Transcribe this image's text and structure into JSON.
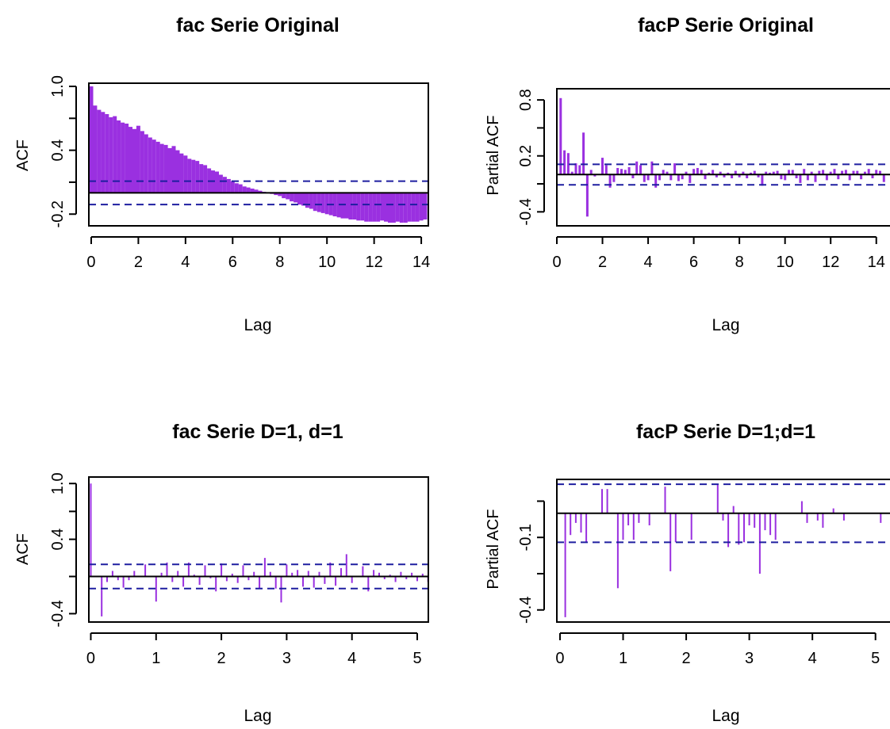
{
  "colors": {
    "bars": "#9a30e0",
    "ci_line": "#1e1ea0",
    "axis": "#000000",
    "background": "#ffffff"
  },
  "chart_data": [
    {
      "id": "p1",
      "type": "bar",
      "subtype": "acf",
      "title": "fac Serie Original",
      "xlabel": "Lag",
      "ylabel": "ACF",
      "xlim": [
        -0.1,
        14.3
      ],
      "ylim": [
        -0.31,
        1.03
      ],
      "xticks": [
        0,
        2,
        4,
        6,
        8,
        10,
        12,
        14
      ],
      "xtick_labels": [
        "0",
        "2",
        "4",
        "6",
        "8",
        "10",
        "12",
        "14"
      ],
      "yticks": [
        -0.2,
        0.4,
        1.0
      ],
      "ytick_labels": [
        "-0.2",
        "0.4",
        "1.0"
      ],
      "yticks_minor": [
        0.1,
        0.7
      ],
      "ci": 0.11,
      "lag_start": 0,
      "lag_step": 0.16667,
      "values": [
        1.0,
        0.82,
        0.78,
        0.76,
        0.74,
        0.71,
        0.72,
        0.68,
        0.66,
        0.65,
        0.62,
        0.6,
        0.63,
        0.58,
        0.55,
        0.52,
        0.5,
        0.48,
        0.46,
        0.45,
        0.42,
        0.44,
        0.4,
        0.37,
        0.35,
        0.32,
        0.31,
        0.3,
        0.27,
        0.26,
        0.23,
        0.21,
        0.2,
        0.17,
        0.15,
        0.13,
        0.11,
        0.09,
        0.08,
        0.06,
        0.05,
        0.04,
        0.03,
        0.02,
        0.01,
        0.0,
        -0.01,
        -0.02,
        -0.03,
        -0.05,
        -0.06,
        -0.08,
        -0.09,
        -0.11,
        -0.12,
        -0.14,
        -0.15,
        -0.17,
        -0.18,
        -0.19,
        -0.2,
        -0.21,
        -0.22,
        -0.23,
        -0.24,
        -0.24,
        -0.25,
        -0.25,
        -0.26,
        -0.26,
        -0.27,
        -0.27,
        -0.27,
        -0.27,
        -0.26,
        -0.27,
        -0.28,
        -0.28,
        -0.27,
        -0.28,
        -0.28,
        -0.27,
        -0.27,
        -0.27,
        -0.26,
        -0.25
      ]
    },
    {
      "id": "p2",
      "type": "bar",
      "subtype": "pacf",
      "title": "facP Serie Original",
      "xlabel": "Lag",
      "ylabel": "Partial ACF",
      "xlim": [
        0.0,
        14.6
      ],
      "ylim": [
        -0.55,
        0.92
      ],
      "xticks": [
        0,
        2,
        4,
        6,
        8,
        10,
        12,
        14
      ],
      "xtick_labels": [
        "0",
        "2",
        "4",
        "6",
        "8",
        "10",
        "12",
        "14"
      ],
      "yticks": [
        -0.4,
        0.2,
        0.8
      ],
      "ytick_labels": [
        "-0.4",
        "0.2",
        "0.8"
      ],
      "yticks_minor": [
        -0.1,
        0.5
      ],
      "ci": 0.11,
      "lag_start": 0.16667,
      "lag_step": 0.16667,
      "values": [
        0.82,
        0.26,
        0.23,
        0.03,
        0.12,
        0.1,
        0.45,
        -0.45,
        0.05,
        -0.02,
        0.0,
        0.18,
        0.1,
        -0.14,
        -0.08,
        0.07,
        0.06,
        0.05,
        0.08,
        -0.04,
        0.14,
        0.1,
        -0.08,
        -0.06,
        0.14,
        -0.14,
        -0.06,
        0.05,
        0.03,
        -0.06,
        0.12,
        -0.07,
        -0.05,
        0.03,
        -0.09,
        0.06,
        0.07,
        0.05,
        -0.05,
        0.02,
        0.05,
        -0.03,
        0.03,
        -0.03,
        0.02,
        -0.04,
        0.04,
        -0.03,
        0.03,
        -0.04,
        0.02,
        0.04,
        -0.03,
        -0.12,
        0.03,
        0.02,
        0.03,
        0.04,
        -0.05,
        -0.06,
        0.05,
        0.05,
        -0.04,
        -0.09,
        0.06,
        -0.06,
        0.03,
        -0.08,
        0.04,
        0.05,
        -0.06,
        0.03,
        0.06,
        -0.05,
        0.04,
        0.05,
        -0.06,
        0.04,
        0.04,
        -0.05,
        0.03,
        0.06,
        -0.04,
        0.05,
        0.04,
        -0.08
      ]
    },
    {
      "id": "p3",
      "type": "bar",
      "subtype": "acf",
      "title": "fac Serie D=1, d=1",
      "xlabel": "Lag",
      "ylabel": "ACF",
      "xlim": [
        -0.03,
        5.17
      ],
      "ylim": [
        -0.49,
        1.07
      ],
      "xticks": [
        0,
        1,
        2,
        3,
        4,
        5
      ],
      "xtick_labels": [
        "0",
        "1",
        "2",
        "3",
        "4",
        "5"
      ],
      "yticks": [
        -0.4,
        0.4,
        1.0
      ],
      "ytick_labels": [
        "-0.4",
        "0.4",
        "1.0"
      ],
      "yticks_minor": [
        0.0,
        0.7
      ],
      "ci": 0.13,
      "lag_start": 0,
      "lag_step": 0.08333,
      "values": [
        1.0,
        0.0,
        -0.43,
        -0.06,
        0.06,
        -0.04,
        -0.12,
        -0.04,
        0.06,
        0.0,
        0.13,
        0.0,
        -0.27,
        0.04,
        0.15,
        -0.06,
        0.06,
        -0.11,
        0.15,
        0.02,
        -0.09,
        0.12,
        -0.02,
        -0.16,
        0.14,
        -0.05,
        0.03,
        -0.07,
        0.12,
        -0.04,
        0.05,
        -0.13,
        0.2,
        0.05,
        -0.13,
        -0.28,
        0.13,
        0.04,
        0.07,
        -0.11,
        0.06,
        -0.12,
        0.05,
        -0.08,
        0.15,
        -0.1,
        0.09,
        0.24,
        -0.07,
        0.0,
        0.11,
        -0.16,
        0.07,
        0.04,
        -0.03,
        0.02,
        -0.06,
        0.05,
        -0.03,
        0.04,
        -0.05,
        0.03,
        -0.06
      ]
    },
    {
      "id": "p4",
      "type": "bar",
      "subtype": "pacf",
      "title": "facP Serie D=1;d=1",
      "xlabel": "Lag",
      "ylabel": "Partial ACF",
      "xlim": [
        -0.05,
        5.23
      ],
      "ylim": [
        -0.45,
        0.14
      ],
      "xticks": [
        0,
        1,
        2,
        3,
        4,
        5
      ],
      "xtick_labels": [
        "0",
        "1",
        "2",
        "3",
        "4",
        "5"
      ],
      "yticks": [
        -0.4,
        -0.1
      ],
      "ytick_labels": [
        "-0.4",
        "-0.1"
      ],
      "yticks_minor": [
        -0.25,
        0.05
      ],
      "ci": 0.12,
      "lag_start": 0.08333,
      "lag_step": 0.08333,
      "values": [
        -0.43,
        -0.09,
        -0.04,
        -0.08,
        -0.12,
        0.0,
        0.0,
        0.1,
        0.1,
        0.0,
        -0.31,
        -0.11,
        -0.05,
        -0.11,
        -0.04,
        0.0,
        -0.05,
        0.0,
        0.0,
        0.11,
        -0.24,
        -0.12,
        0.0,
        0.0,
        -0.11,
        0.0,
        0.0,
        0.0,
        0.0,
        0.12,
        -0.03,
        -0.14,
        0.03,
        -0.13,
        -0.12,
        -0.05,
        -0.06,
        -0.25,
        -0.07,
        -0.09,
        -0.11,
        0.0,
        0.0,
        0.0,
        0.0,
        0.05,
        -0.04,
        0.0,
        -0.03,
        -0.06,
        0.0,
        0.02,
        0.0,
        -0.03,
        0.0,
        0.0,
        0.0,
        0.0,
        0.0,
        0.0,
        -0.04,
        0.0,
        -0.04
      ]
    }
  ]
}
